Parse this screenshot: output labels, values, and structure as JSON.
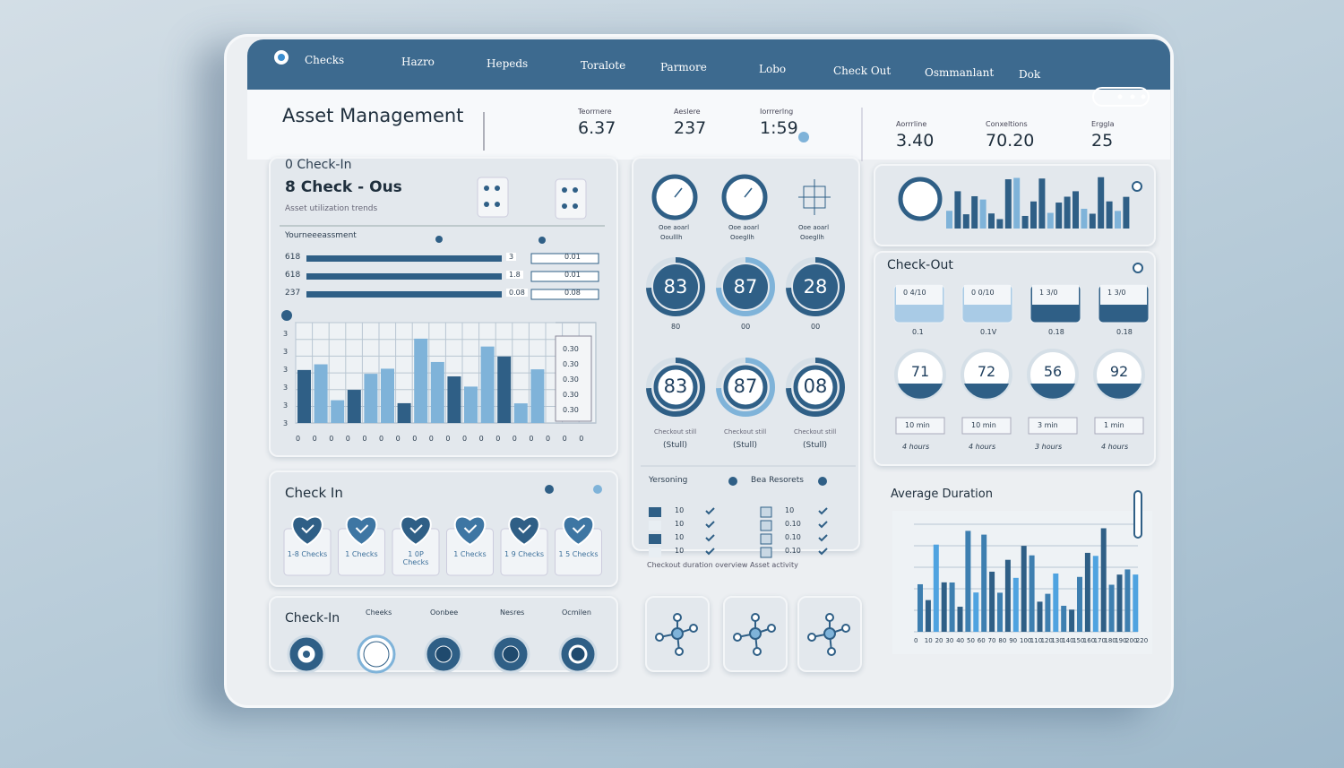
{
  "nav": {
    "items": [
      "Checks",
      "Hazro",
      "Hepeds",
      "Toralote",
      "Parmore",
      "Lobo",
      "Check Out",
      "Osmmanlant",
      "Dok"
    ]
  },
  "header": {
    "title": "Asset Management",
    "stats": [
      {
        "label": "Teorrnere",
        "value": "6.37"
      },
      {
        "label": "Aeslere",
        "value": "237"
      },
      {
        "label": "Iorrrerlng",
        "value": "1:59"
      },
      {
        "label": "Aorrrline",
        "value": "3.40"
      },
      {
        "label": "Conxeltions",
        "value": "70.20"
      },
      {
        "label": "Erggla",
        "value": "25"
      }
    ]
  },
  "check_panel": {
    "line1": "0 Check-In",
    "line2": "8 Check - Ous",
    "subtitle": "Asset utilization trends",
    "list_title": "Yourneeeassment",
    "rows": [
      {
        "label": "618",
        "a": "3",
        "b": "0.01"
      },
      {
        "label": "618",
        "a": "1.8",
        "b": "0.01"
      },
      {
        "label": "237",
        "a": "0.08",
        "b": "0.08"
      }
    ],
    "y_labels": [
      "3",
      "3",
      "3",
      "3",
      "3",
      "3"
    ],
    "side_values": [
      "0.30",
      "0.30",
      "0.30",
      "0.30",
      "0.30"
    ],
    "x_labels": [
      "0",
      "0",
      "0",
      "0",
      "0",
      "0",
      "0",
      "0",
      "0",
      "0",
      "0",
      "0",
      "0",
      "0",
      "0",
      "0",
      "0",
      "0"
    ]
  },
  "gauges": {
    "clocks": [
      {
        "caption": "Ooe aoarl",
        "sub": "Ooulllh"
      },
      {
        "caption": "Ooe aoarl",
        "sub": "Ooegllh"
      },
      {
        "caption": "Ooe aoarl",
        "sub": "Ooegllh"
      }
    ],
    "row1": [
      {
        "value": "83",
        "caption": "80"
      },
      {
        "value": "87",
        "caption": "00"
      },
      {
        "value": "28",
        "caption": "00"
      }
    ],
    "row2": [
      {
        "value": "83",
        "caption": "Checkout still",
        "sub": "(Stull)"
      },
      {
        "value": "87",
        "caption": "Checkout still",
        "sub": "(Stull)"
      },
      {
        "value": "08",
        "caption": "Checkout still",
        "sub": "(Stull)"
      }
    ]
  },
  "checklist": {
    "col1": "Yersoning",
    "col2": "Bea Resorets",
    "rows": [
      [
        "10",
        "10"
      ],
      [
        "10",
        "0.10"
      ],
      [
        "10",
        "0.10"
      ],
      [
        "10",
        "0.10"
      ]
    ],
    "footer": "Checkout duration overview   Asset activity"
  },
  "checkout": {
    "title": "Check-Out",
    "tiles": [
      {
        "value": "0 4/10",
        "caption": "0.1"
      },
      {
        "value": "0 0/10",
        "caption": "0.1V"
      },
      {
        "value": "1 3/0",
        "caption": "0.18"
      },
      {
        "value": "1 3/0",
        "caption": "0.18"
      }
    ],
    "dials": [
      {
        "value": "71",
        "time": "10 min",
        "note": "4 hours"
      },
      {
        "value": "72",
        "time": "10 min",
        "note": "4 hours"
      },
      {
        "value": "56",
        "time": "3 min",
        "note": "3 hours"
      },
      {
        "value": "92",
        "time": "1 min",
        "note": "4 hours"
      }
    ]
  },
  "average_duration": {
    "title": "Average Duration",
    "x_labels": [
      "0",
      "10",
      "20",
      "30",
      "40",
      "50",
      "60",
      "70",
      "80",
      "90",
      "100",
      "110",
      "120",
      "130",
      "140",
      "150",
      "160",
      "170",
      "180",
      "190",
      "200",
      "220"
    ]
  },
  "checkin_hearts": {
    "title": "Check In",
    "items": [
      "1-8 Checks",
      "1 Checks",
      "1 0P Checks",
      "1 Checks",
      "1 9 Checks",
      "1 5 Checks"
    ]
  },
  "checkin_rings": {
    "title": "Check-In",
    "labels": [
      "Cheeks",
      "Oonbee",
      "Nesres",
      "Ocmilen"
    ]
  }
}
